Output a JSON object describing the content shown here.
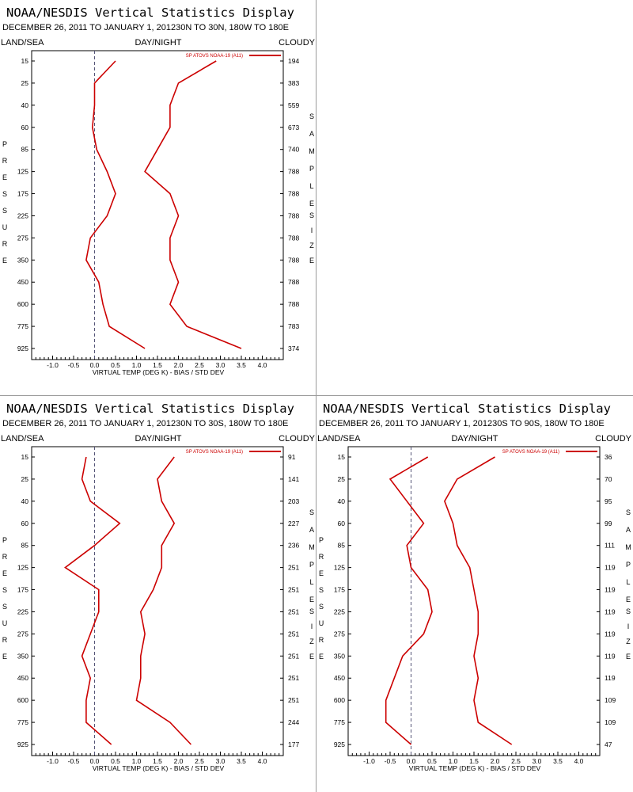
{
  "charts": [
    {
      "title": "NOAA/NESDIS Vertical Statistics Display",
      "subtitle": "DECEMBER 26, 2011 TO JANUARY 1, 201230N TO 30N, 180W TO 180E",
      "top_left": "LAND/SEA",
      "top_center": "DAY/NIGHT",
      "top_right": "CLOUDY",
      "ylabel": "PRESSURE",
      "y2label_1": "SAMPLE",
      "y2label_2": "SIZE",
      "xlabel": "VIRTUAL TEMP (DEG K) - BIAS / STD DEV",
      "legend": "SP ATOVS NOAA-19 (A11)",
      "color": "#cc0000"
    },
    {
      "title": "NOAA/NESDIS Vertical Statistics Display",
      "subtitle": "DECEMBER 26, 2011 TO JANUARY 1, 201230N TO 30S, 180W TO 180E",
      "top_left": "LAND/SEA",
      "top_center": "DAY/NIGHT",
      "top_right": "CLOUDY",
      "ylabel": "PRESSURE",
      "y2label_1": "SAMPLE",
      "y2label_2": "SIZE",
      "xlabel": "VIRTUAL TEMP (DEG K) - BIAS / STD DEV",
      "legend": "SP ATOVS NOAA-19 (A11)",
      "color": "#cc0000"
    },
    {
      "title": "NOAA/NESDIS Vertical Statistics Display",
      "subtitle": "DECEMBER 26, 2011 TO JANUARY 1, 201230S TO 90S, 180W TO 180E",
      "top_left": "LAND/SEA",
      "top_center": "DAY/NIGHT",
      "top_right": "CLOUDY",
      "ylabel": "PRESSURE",
      "y2label_1": "SAMPLE",
      "y2label_2": "SIZE",
      "xlabel": "VIRTUAL TEMP (DEG K) - BIAS / STD DEV",
      "legend": "SP ATOVS NOAA-19 (A11)",
      "color": "#cc0000"
    }
  ],
  "chart_data": [
    {
      "type": "line",
      "pressure_levels": [
        15,
        25,
        40,
        60,
        85,
        125,
        175,
        225,
        275,
        350,
        450,
        600,
        775,
        925
      ],
      "sample_size": [
        194,
        383,
        559,
        673,
        740,
        788,
        788,
        788,
        788,
        788,
        788,
        788,
        783,
        374
      ],
      "xlim": [
        -1.5,
        4.5
      ],
      "xticks": [
        -1.0,
        -0.5,
        0.0,
        0.5,
        1.0,
        1.5,
        2.0,
        2.5,
        3.0,
        3.5,
        4.0
      ],
      "series": [
        {
          "name": "SP ATOVS NOAA-19 (A11)",
          "metric": "bias",
          "values": [
            0.5,
            0.0,
            0.0,
            -0.05,
            0.05,
            0.3,
            0.5,
            0.3,
            -0.1,
            -0.2,
            0.1,
            0.2,
            0.35,
            1.2
          ]
        },
        {
          "name": "SP ATOVS NOAA-19 (A11)",
          "metric": "std_dev",
          "values": [
            2.9,
            2.0,
            1.8,
            1.8,
            1.5,
            1.2,
            1.8,
            2.0,
            1.8,
            1.8,
            2.0,
            1.8,
            2.2,
            3.5
          ]
        }
      ]
    },
    {
      "type": "line",
      "pressure_levels": [
        15,
        25,
        40,
        60,
        85,
        125,
        175,
        225,
        275,
        350,
        450,
        600,
        775,
        925
      ],
      "sample_size": [
        91,
        141,
        203,
        227,
        236,
        251,
        251,
        251,
        251,
        251,
        251,
        251,
        244,
        177
      ],
      "xlim": [
        -1.5,
        4.5
      ],
      "xticks": [
        -1.0,
        -0.5,
        0.0,
        0.5,
        1.0,
        1.5,
        2.0,
        2.5,
        3.0,
        3.5,
        4.0
      ],
      "series": [
        {
          "name": "SP ATOVS NOAA-19 (A11)",
          "metric": "bias",
          "values": [
            -0.2,
            -0.3,
            -0.1,
            0.6,
            0.0,
            -0.7,
            0.1,
            0.1,
            -0.1,
            -0.3,
            -0.1,
            -0.2,
            -0.2,
            0.4
          ]
        },
        {
          "name": "SP ATOVS NOAA-19 (A11)",
          "metric": "std_dev",
          "values": [
            1.9,
            1.5,
            1.6,
            1.9,
            1.6,
            1.6,
            1.4,
            1.1,
            1.2,
            1.1,
            1.1,
            1.0,
            1.8,
            2.3
          ]
        }
      ]
    },
    {
      "type": "line",
      "pressure_levels": [
        15,
        25,
        40,
        60,
        85,
        125,
        175,
        225,
        275,
        350,
        450,
        600,
        775,
        925
      ],
      "sample_size": [
        36,
        70,
        95,
        99,
        111,
        119,
        119,
        119,
        119,
        119,
        119,
        109,
        109,
        47
      ],
      "xlim": [
        -1.5,
        4.5
      ],
      "xticks": [
        -1.0,
        -0.5,
        0.0,
        0.5,
        1.0,
        1.5,
        2.0,
        2.5,
        3.0,
        3.5,
        4.0
      ],
      "series": [
        {
          "name": "SP ATOVS NOAA-19 (A11)",
          "metric": "bias",
          "values": [
            0.4,
            -0.5,
            -0.1,
            0.3,
            -0.1,
            0.0,
            0.4,
            0.5,
            0.3,
            -0.2,
            -0.4,
            -0.6,
            -0.6,
            0.0
          ]
        },
        {
          "name": "SP ATOVS NOAA-19 (A11)",
          "metric": "std_dev",
          "values": [
            2.0,
            1.1,
            0.8,
            1.0,
            1.1,
            1.4,
            1.5,
            1.6,
            1.6,
            1.5,
            1.6,
            1.5,
            1.6,
            2.4
          ]
        }
      ]
    }
  ]
}
